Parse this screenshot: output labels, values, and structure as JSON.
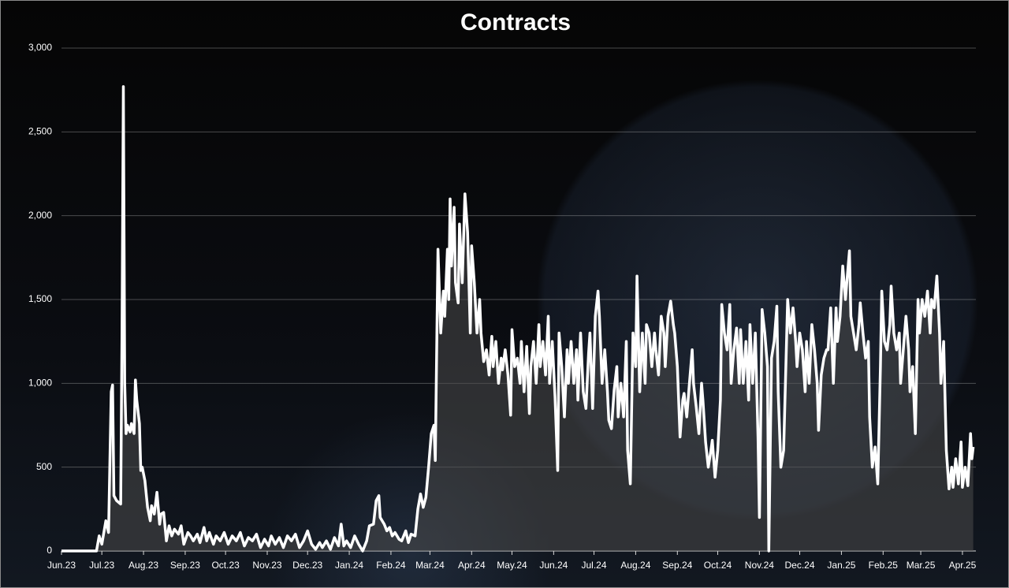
{
  "chart_data": {
    "type": "area-line",
    "title": "Contracts",
    "color": "#ffffff",
    "fill": "#4a4a4a",
    "grid": true,
    "xlim": [
      0,
      680
    ],
    "xticks": [
      {
        "value": 0,
        "label": "Jun.23"
      },
      {
        "value": 30,
        "label": "Jul.23"
      },
      {
        "value": 61,
        "label": "Aug.23"
      },
      {
        "value": 92,
        "label": "Sep.23"
      },
      {
        "value": 122,
        "label": "Oct.23"
      },
      {
        "value": 153,
        "label": "Nov.23"
      },
      {
        "value": 183,
        "label": "Dec.23"
      },
      {
        "value": 214,
        "label": "Jan.24"
      },
      {
        "value": 245,
        "label": "Feb.24"
      },
      {
        "value": 274,
        "label": "Mar.24"
      },
      {
        "value": 305,
        "label": "Apr.24"
      },
      {
        "value": 335,
        "label": "May.24"
      },
      {
        "value": 366,
        "label": "Jun.24"
      },
      {
        "value": 396,
        "label": "Jul.24"
      },
      {
        "value": 427,
        "label": "Aug.24"
      },
      {
        "value": 458,
        "label": "Sep.24"
      },
      {
        "value": 488,
        "label": "Oct.24"
      },
      {
        "value": 519,
        "label": "Nov.24"
      },
      {
        "value": 549,
        "label": "Dec.24"
      },
      {
        "value": 580,
        "label": "Jan.25"
      },
      {
        "value": 611,
        "label": "Feb.25"
      },
      {
        "value": 639,
        "label": "Mar.25"
      },
      {
        "value": 670,
        "label": "Apr.25"
      }
    ],
    "ylim": [
      0,
      3000
    ],
    "yticks": [
      0,
      500,
      {
        "value": 1000,
        "label": "1,000"
      },
      {
        "value": 1500,
        "label": "1,500"
      },
      {
        "value": 2000,
        "label": "2,000"
      },
      {
        "value": 2500,
        "label": "2,500"
      },
      {
        "value": 3000,
        "label": "3,000"
      }
    ],
    "x": [
      0,
      26,
      28,
      30,
      33,
      35,
      37,
      38,
      39,
      41,
      44,
      45,
      46,
      47,
      48,
      49,
      51,
      52,
      54,
      55,
      56,
      58,
      59,
      60,
      62,
      64,
      66,
      67,
      69,
      71,
      73,
      74,
      76,
      78,
      80,
      82,
      84,
      87,
      89,
      91,
      94,
      96,
      98,
      101,
      103,
      106,
      108,
      110,
      113,
      115,
      118,
      121,
      124,
      127,
      130,
      133,
      136,
      139,
      142,
      145,
      148,
      151,
      154,
      156,
      159,
      162,
      165,
      168,
      171,
      174,
      177,
      180,
      183,
      186,
      189,
      192,
      194,
      197,
      200,
      203,
      206,
      208,
      210,
      212,
      215,
      218,
      221,
      224,
      227,
      229,
      232,
      234,
      236,
      237,
      240,
      242,
      244,
      246,
      248,
      251,
      253,
      256,
      258,
      260,
      263,
      265,
      267,
      269,
      271,
      273,
      275,
      277,
      278,
      280,
      282,
      284,
      285,
      287,
      288,
      289,
      290,
      292,
      293,
      295,
      296,
      298,
      300,
      302,
      304,
      305,
      307,
      309,
      311,
      312,
      314,
      316,
      318,
      320,
      321,
      323,
      325,
      327,
      328,
      330,
      332,
      334,
      335,
      337,
      339,
      341,
      342,
      344,
      346,
      348,
      349,
      351,
      353,
      355,
      356,
      358,
      360,
      362,
      363,
      365,
      367,
      369,
      370,
      372,
      374,
      376,
      377,
      379,
      381,
      383,
      384,
      386,
      388,
      390,
      392,
      393,
      395,
      397,
      399,
      400,
      402,
      404,
      406,
      407,
      409,
      411,
      413,
      414,
      416,
      418,
      420,
      421,
      423,
      425,
      427,
      428,
      430,
      432,
      434,
      435,
      437,
      439,
      441,
      442,
      444,
      446,
      448,
      449,
      451,
      453,
      455,
      456,
      458,
      460,
      462,
      463,
      465,
      467,
      469,
      470,
      472,
      474,
      476,
      477,
      479,
      481,
      483,
      484,
      486,
      488,
      490,
      491,
      493,
      495,
      497,
      498,
      500,
      502,
      504,
      505,
      507,
      509,
      511,
      512,
      514,
      516,
      518,
      519,
      521,
      523,
      525,
      526,
      528,
      530,
      532,
      533,
      535,
      537,
      539,
      540,
      542,
      544,
      546,
      547,
      549,
      551,
      553,
      554,
      556,
      558,
      560,
      562,
      563,
      565,
      567,
      569,
      570,
      572,
      574,
      576,
      577,
      579,
      581,
      583,
      584,
      586,
      587,
      589,
      591,
      593,
      594,
      596,
      598,
      600,
      601,
      603,
      605,
      607,
      609,
      610,
      612,
      614,
      616,
      617,
      619,
      621,
      623,
      624,
      626,
      628,
      630,
      631,
      633,
      635,
      637,
      638,
      640,
      642,
      644,
      646,
      647,
      649,
      651,
      653,
      654,
      656,
      658,
      660,
      662,
      663,
      665,
      667,
      669,
      670,
      672,
      674,
      676,
      677,
      678
    ],
    "values": [
      0,
      0,
      90,
      40,
      180,
      110,
      950,
      990,
      330,
      300,
      280,
      1300,
      2770,
      1000,
      700,
      750,
      710,
      760,
      700,
      1020,
      900,
      760,
      480,
      500,
      420,
      260,
      180,
      270,
      220,
      350,
      160,
      220,
      230,
      60,
      150,
      90,
      130,
      100,
      150,
      40,
      110,
      90,
      60,
      100,
      50,
      140,
      60,
      110,
      40,
      90,
      60,
      110,
      40,
      90,
      60,
      110,
      30,
      80,
      60,
      100,
      20,
      70,
      30,
      90,
      40,
      80,
      20,
      90,
      60,
      100,
      20,
      60,
      120,
      40,
      10,
      50,
      20,
      60,
      10,
      80,
      30,
      160,
      30,
      60,
      20,
      90,
      40,
      0,
      60,
      150,
      160,
      300,
      330,
      200,
      160,
      120,
      140,
      90,
      110,
      70,
      60,
      120,
      50,
      100,
      90,
      250,
      340,
      260,
      320,
      500,
      700,
      750,
      540,
      1800,
      1300,
      1550,
      1400,
      1800,
      1500,
      2100,
      1700,
      2050,
      1600,
      1480,
      1950,
      1600,
      2130,
      1900,
      1300,
      1820,
      1600,
      1300,
      1500,
      1300,
      1130,
      1200,
      1050,
      1280,
      1100,
      1250,
      1000,
      1150,
      1080,
      1200,
      1050,
      810,
      1320,
      1100,
      1150,
      1000,
      1250,
      950,
      1220,
      820,
      1100,
      1250,
      1000,
      1350,
      1100,
      1250,
      1050,
      1400,
      1000,
      1250,
      920,
      480,
      1300,
      1100,
      800,
      1200,
      1000,
      1250,
      1000,
      1200,
      900,
      1300,
      950,
      850,
      1180,
      1300,
      850,
      1400,
      1550,
      1400,
      1000,
      1200,
      950,
      780,
      730,
      960,
      1100,
      800,
      1000,
      800,
      1250,
      600,
      400,
      1300,
      1100,
      1640,
      950,
      1300,
      1000,
      1350,
      1300,
      1100,
      1300,
      1200,
      1050,
      1400,
      1300,
      1100,
      1400,
      1490,
      1350,
      1300,
      1100,
      680,
      900,
      940,
      800,
      1000,
      1200,
      1000,
      860,
      700,
      1000,
      900,
      650,
      500,
      600,
      660,
      440,
      600,
      900,
      1470,
      1300,
      1200,
      1470,
      1000,
      1200,
      1330,
      1000,
      1320,
      1000,
      1250,
      900,
      1350,
      1000,
      1300,
      680,
      200,
      1440,
      1300,
      1100,
      0,
      1150,
      1250,
      1460,
      950,
      500,
      600,
      1200,
      1500,
      1300,
      1450,
      1250,
      1100,
      1300,
      1200,
      950,
      1250,
      1000,
      1350,
      1200,
      1000,
      720,
      1050,
      1150,
      1200,
      1200,
      1450,
      1000,
      1450,
      1250,
      1400,
      1700,
      1500,
      1600,
      1790,
      1400,
      1300,
      1200,
      1350,
      1480,
      1300,
      1150,
      1250,
      800,
      500,
      620,
      400,
      1100,
      1550,
      1250,
      1200,
      1350,
      1580,
      1300,
      1200,
      1300,
      1000,
      1200,
      1400,
      1200,
      950,
      1100,
      700,
      1500,
      1300,
      1500,
      1400,
      1550,
      1300,
      1500,
      1450,
      1640,
      1300,
      1000,
      1250,
      600,
      370,
      500,
      380,
      550,
      400,
      650,
      380,
      500,
      390,
      700,
      550,
      620
    ]
  }
}
